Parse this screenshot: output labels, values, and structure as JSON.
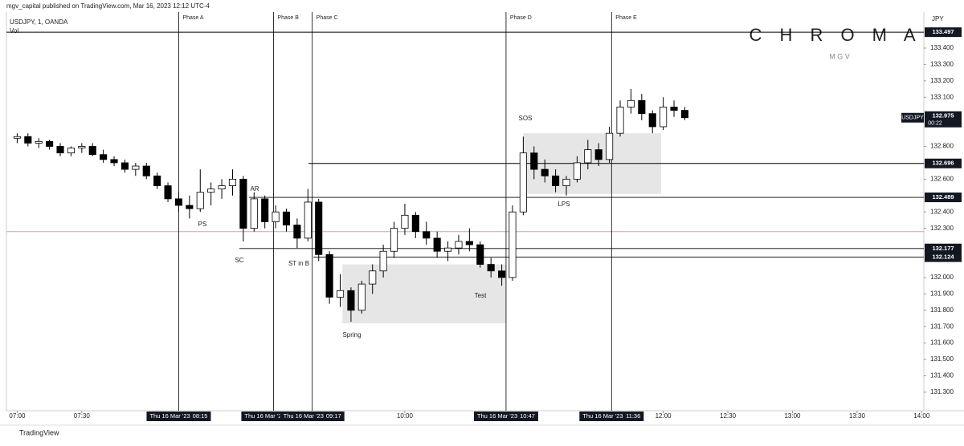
{
  "header": {
    "publisher": "mgv_capital published on TradingView.com, Mar 16, 2023 12:12 UTC-4",
    "volume_label": "Vol",
    "brand": "C H R O M A",
    "brand_sub": "M G V",
    "footer": "TradingView"
  },
  "chart_data": {
    "type": "candlestick",
    "title": "USDJPY, 1, OANDA",
    "currency": "JPY",
    "countdown": "00:22",
    "x": [
      "07:00",
      "07:05",
      "07:10",
      "07:15",
      "07:20",
      "07:25",
      "07:30",
      "07:35",
      "07:40",
      "07:45",
      "07:50",
      "07:55",
      "08:00",
      "08:05",
      "08:10",
      "08:15",
      "08:20",
      "08:25",
      "08:30",
      "08:35",
      "08:40",
      "08:45",
      "08:50",
      "08:55",
      "09:00",
      "09:05",
      "09:10",
      "09:15",
      "09:20",
      "09:25",
      "09:30",
      "09:35",
      "09:40",
      "09:45",
      "09:50",
      "09:55",
      "10:00",
      "10:05",
      "10:10",
      "10:15",
      "10:20",
      "10:25",
      "10:30",
      "10:35",
      "10:40",
      "10:45",
      "10:50",
      "10:55",
      "11:00",
      "11:05",
      "11:10",
      "11:15",
      "11:20",
      "11:25",
      "11:30",
      "11:35",
      "11:40",
      "11:45",
      "11:50",
      "11:55",
      "12:00",
      "12:05",
      "12:10"
    ],
    "series": [
      {
        "name": "USDJPY",
        "up_color": "#ffffff",
        "down_color": "#000000",
        "open": [
          132.85,
          132.86,
          132.82,
          132.83,
          132.8,
          132.76,
          132.79,
          132.8,
          132.75,
          132.72,
          132.7,
          132.66,
          132.68,
          132.62,
          132.56,
          132.48,
          132.44,
          132.42,
          132.52,
          132.54,
          132.56,
          132.6,
          132.3,
          132.48,
          132.34,
          132.4,
          132.32,
          132.24,
          132.46,
          132.14,
          131.88,
          131.92,
          131.8,
          131.96,
          132.04,
          132.16,
          132.3,
          132.38,
          132.28,
          132.24,
          132.16,
          132.18,
          132.22,
          132.2,
          132.08,
          132.04,
          132.0,
          132.4,
          132.76,
          132.66,
          132.62,
          132.56,
          132.6,
          132.7,
          132.78,
          132.72,
          132.88,
          133.04,
          133.08,
          133.0,
          132.92,
          133.04,
          133.02
        ],
        "high": [
          132.88,
          132.88,
          132.85,
          132.84,
          132.82,
          132.8,
          132.82,
          132.82,
          132.78,
          132.74,
          132.72,
          132.7,
          132.7,
          132.64,
          132.58,
          132.52,
          132.5,
          132.66,
          132.58,
          132.6,
          132.66,
          132.62,
          132.52,
          132.5,
          132.44,
          132.42,
          132.36,
          132.54,
          132.48,
          132.16,
          132.02,
          131.94,
          131.98,
          132.08,
          132.2,
          132.34,
          132.45,
          132.4,
          132.34,
          132.28,
          132.22,
          132.26,
          132.3,
          132.22,
          132.12,
          132.08,
          132.44,
          132.86,
          132.8,
          132.72,
          132.66,
          132.62,
          132.74,
          132.84,
          132.82,
          132.92,
          133.08,
          133.15,
          133.12,
          133.02,
          133.1,
          133.08,
          133.04
        ],
        "low": [
          132.82,
          132.8,
          132.79,
          132.78,
          132.74,
          132.74,
          132.76,
          132.74,
          132.7,
          132.68,
          132.64,
          132.62,
          132.6,
          132.54,
          132.46,
          132.4,
          132.36,
          132.4,
          132.44,
          132.48,
          132.5,
          132.22,
          132.28,
          132.3,
          132.3,
          132.28,
          132.18,
          132.22,
          132.1,
          131.84,
          131.82,
          131.73,
          131.78,
          131.9,
          132.0,
          132.12,
          132.26,
          132.24,
          132.2,
          132.12,
          132.1,
          132.14,
          132.16,
          132.06,
          132.0,
          131.95,
          131.98,
          132.38,
          132.6,
          132.58,
          132.52,
          132.5,
          132.58,
          132.66,
          132.68,
          132.7,
          132.86,
          133.0,
          132.96,
          132.88,
          132.9,
          132.98,
          132.96
        ],
        "close": [
          132.86,
          132.82,
          132.83,
          132.8,
          132.76,
          132.79,
          132.8,
          132.75,
          132.72,
          132.7,
          132.66,
          132.68,
          132.62,
          132.56,
          132.48,
          132.44,
          132.42,
          132.52,
          132.54,
          132.56,
          132.6,
          132.3,
          132.48,
          132.34,
          132.4,
          132.32,
          132.24,
          132.46,
          132.14,
          131.88,
          131.92,
          131.8,
          131.96,
          132.04,
          132.16,
          132.3,
          132.38,
          132.28,
          132.24,
          132.16,
          132.18,
          132.22,
          132.2,
          132.08,
          132.04,
          132.0,
          132.4,
          132.76,
          132.66,
          132.62,
          132.56,
          132.6,
          132.7,
          132.78,
          132.72,
          132.88,
          133.04,
          133.08,
          133.0,
          132.92,
          133.04,
          133.02,
          132.975
        ]
      }
    ],
    "xlim": [
      "06:55",
      "14:01"
    ],
    "xticks": [
      "07:00",
      "07:30",
      "10:00",
      "12:00",
      "12:30",
      "13:00",
      "13:30",
      "14:00"
    ],
    "ylim": [
      131.187,
      133.62
    ],
    "yticks": [
      {
        "value": 133.4,
        "label": "133.400"
      },
      {
        "value": 133.3,
        "label": "133.300"
      },
      {
        "value": 133.2,
        "label": "133.200"
      },
      {
        "value": 133.1,
        "label": "133.100"
      },
      {
        "value": 132.8,
        "label": "132.800"
      },
      {
        "value": 132.6,
        "label": "132.600"
      },
      {
        "value": 132.4,
        "label": "132.400"
      },
      {
        "value": 132.3,
        "label": "132.300"
      },
      {
        "value": 132.0,
        "label": "132.000"
      },
      {
        "value": 131.9,
        "label": "131.900"
      },
      {
        "value": 131.8,
        "label": "131.800"
      },
      {
        "value": 131.7,
        "label": "131.700"
      },
      {
        "value": 131.6,
        "label": "131.600"
      },
      {
        "value": 131.5,
        "label": "131.500"
      },
      {
        "value": 131.4,
        "label": "131.400"
      },
      {
        "value": 131.3,
        "label": "131.300"
      }
    ],
    "levels": [
      133.497,
      132.696,
      132.489,
      132.177,
      132.124
    ],
    "reference_line": {
      "value": 132.28,
      "color": "#d9a0a0"
    },
    "phases": [
      {
        "name": "Phase A",
        "x": "08:15",
        "date": "Thu 16 Mar '23"
      },
      {
        "name": "Phase B",
        "x": "08:59",
        "date": "Thu 16 Mar '2"
      },
      {
        "name": "Phase C",
        "x": "09:17",
        "date": "Thu 16 Mar '23"
      },
      {
        "name": "Phase D",
        "x": "10:47",
        "date": "Thu 16 Mar '23"
      },
      {
        "name": "Phase E",
        "x": "11:36",
        "date": "Thu 16 Mar '23"
      }
    ],
    "zones": [
      {
        "x": [
          "09:31",
          "10:47"
        ],
        "y": [
          131.72,
          132.08
        ],
        "color": "#e6e6e6"
      },
      {
        "x": [
          "10:55",
          "11:59"
        ],
        "y": [
          132.51,
          132.88
        ],
        "color": "#e6e6e6"
      }
    ],
    "annotations": [
      "PS",
      "SC",
      "AR",
      "ST in B",
      "Spring",
      "Test",
      "SOS",
      "LPS"
    ]
  }
}
